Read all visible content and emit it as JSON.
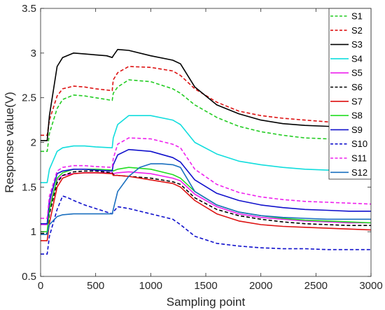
{
  "chart_data": {
    "type": "line",
    "title": "",
    "xlabel": "Sampling point",
    "ylabel": "Response value(V)",
    "xlim": [
      0,
      3000
    ],
    "ylim": [
      0.5,
      3.5
    ],
    "xticks": [
      0,
      500,
      1000,
      1500,
      2000,
      2500,
      3000
    ],
    "xtick_labels": [
      "0",
      "500",
      "1000",
      "1500",
      "2000",
      "2500",
      "3000"
    ],
    "yticks": [
      0.5,
      1,
      1.5,
      2,
      2.5,
      3,
      3.5
    ],
    "ytick_labels": [
      "0.5",
      "1",
      "1.5",
      "2",
      "2.5",
      "3",
      "3.5"
    ],
    "grid": false,
    "legend_position": "top-right",
    "series": [
      {
        "name": "S1",
        "color": "#22cc22",
        "dash": "dashed",
        "x": [
          0,
          60,
          80,
          150,
          200,
          300,
          400,
          500,
          650,
          660,
          700,
          800,
          1000,
          1200,
          1270,
          1400,
          1600,
          1800,
          2000,
          2200,
          2400,
          2600,
          2800,
          3000
        ],
        "y": [
          1.9,
          1.9,
          2.1,
          2.38,
          2.48,
          2.53,
          2.52,
          2.5,
          2.47,
          2.55,
          2.62,
          2.7,
          2.68,
          2.6,
          2.55,
          2.42,
          2.28,
          2.18,
          2.12,
          2.08,
          2.05,
          2.04,
          2.03,
          2.02
        ]
      },
      {
        "name": "S2",
        "color": "#dd1111",
        "dash": "dashed",
        "x": [
          0,
          60,
          80,
          150,
          200,
          300,
          400,
          500,
          650,
          660,
          700,
          800,
          1000,
          1200,
          1270,
          1400,
          1600,
          1800,
          2000,
          2200,
          2400,
          2600,
          2800,
          3000
        ],
        "y": [
          2.08,
          2.08,
          2.25,
          2.52,
          2.6,
          2.63,
          2.62,
          2.6,
          2.58,
          2.7,
          2.78,
          2.85,
          2.84,
          2.8,
          2.75,
          2.6,
          2.45,
          2.35,
          2.3,
          2.27,
          2.25,
          2.23,
          2.22,
          2.21
        ]
      },
      {
        "name": "S3",
        "color": "#000000",
        "dash": "solid",
        "x": [
          0,
          60,
          80,
          150,
          200,
          300,
          400,
          500,
          600,
          650,
          660,
          700,
          800,
          1000,
          1200,
          1270,
          1400,
          1600,
          1800,
          2000,
          2200,
          2400,
          2600,
          2800,
          3000
        ],
        "y": [
          2.02,
          2.02,
          2.3,
          2.85,
          2.95,
          3.0,
          2.99,
          2.98,
          2.97,
          2.95,
          2.97,
          3.04,
          3.03,
          2.97,
          2.92,
          2.88,
          2.62,
          2.42,
          2.32,
          2.25,
          2.21,
          2.19,
          2.18,
          2.17,
          2.17
        ]
      },
      {
        "name": "S4",
        "color": "#11dddd",
        "dash": "solid",
        "x": [
          0,
          60,
          80,
          150,
          200,
          300,
          400,
          500,
          650,
          660,
          700,
          800,
          1000,
          1200,
          1270,
          1400,
          1600,
          1800,
          2000,
          2200,
          2400,
          2600,
          2800,
          3000
        ],
        "y": [
          1.55,
          1.55,
          1.7,
          1.9,
          1.94,
          1.96,
          1.96,
          1.95,
          1.94,
          2.05,
          2.2,
          2.3,
          2.3,
          2.25,
          2.2,
          2.0,
          1.87,
          1.79,
          1.75,
          1.72,
          1.7,
          1.69,
          1.69,
          1.68
        ]
      },
      {
        "name": "S5",
        "color": "#ee22ee",
        "dash": "solid",
        "x": [
          0,
          60,
          80,
          150,
          200,
          300,
          400,
          500,
          650,
          660,
          700,
          800,
          1000,
          1200,
          1270,
          1400,
          1600,
          1800,
          2000,
          2200,
          2400,
          2600,
          2800,
          3000
        ],
        "y": [
          1.08,
          1.08,
          1.3,
          1.58,
          1.63,
          1.65,
          1.66,
          1.66,
          1.66,
          1.65,
          1.66,
          1.67,
          1.65,
          1.6,
          1.57,
          1.42,
          1.28,
          1.2,
          1.16,
          1.14,
          1.12,
          1.11,
          1.1,
          1.1
        ]
      },
      {
        "name": "S6",
        "color": "#000000",
        "dash": "dashed",
        "x": [
          0,
          60,
          80,
          150,
          200,
          300,
          400,
          500,
          650,
          660,
          700,
          800,
          1000,
          1200,
          1270,
          1400,
          1600,
          1800,
          2000,
          2200,
          2400,
          2600,
          2800,
          3000
        ],
        "y": [
          0.98,
          0.98,
          1.2,
          1.55,
          1.63,
          1.67,
          1.68,
          1.68,
          1.66,
          1.64,
          1.63,
          1.62,
          1.6,
          1.56,
          1.53,
          1.38,
          1.25,
          1.18,
          1.14,
          1.11,
          1.09,
          1.08,
          1.07,
          1.07
        ]
      },
      {
        "name": "S7",
        "color": "#dd1111",
        "dash": "solid",
        "x": [
          0,
          60,
          80,
          150,
          200,
          300,
          400,
          500,
          650,
          660,
          700,
          800,
          1000,
          1200,
          1270,
          1400,
          1600,
          1800,
          2000,
          2200,
          2400,
          2600,
          2800,
          3000
        ],
        "y": [
          0.9,
          0.9,
          1.1,
          1.5,
          1.6,
          1.65,
          1.66,
          1.66,
          1.65,
          1.63,
          1.63,
          1.62,
          1.58,
          1.54,
          1.5,
          1.35,
          1.2,
          1.12,
          1.08,
          1.06,
          1.05,
          1.04,
          1.03,
          1.02
        ]
      },
      {
        "name": "S8",
        "color": "#22dd22",
        "dash": "solid",
        "x": [
          0,
          60,
          80,
          150,
          200,
          300,
          400,
          500,
          650,
          660,
          700,
          800,
          1000,
          1200,
          1270,
          1400,
          1600,
          1800,
          2000,
          2200,
          2400,
          2600,
          2800,
          3000
        ],
        "y": [
          1.0,
          1.0,
          1.25,
          1.6,
          1.66,
          1.7,
          1.7,
          1.7,
          1.69,
          1.68,
          1.7,
          1.72,
          1.7,
          1.64,
          1.6,
          1.45,
          1.3,
          1.22,
          1.18,
          1.15,
          1.13,
          1.12,
          1.11,
          1.1
        ]
      },
      {
        "name": "S9",
        "color": "#1111cc",
        "dash": "solid",
        "x": [
          0,
          60,
          80,
          150,
          200,
          300,
          400,
          500,
          650,
          660,
          700,
          800,
          1000,
          1200,
          1270,
          1400,
          1600,
          1800,
          2000,
          2200,
          2400,
          2600,
          2800,
          3000
        ],
        "y": [
          1.09,
          1.09,
          1.35,
          1.65,
          1.68,
          1.7,
          1.7,
          1.69,
          1.68,
          1.75,
          1.86,
          1.92,
          1.9,
          1.83,
          1.78,
          1.58,
          1.43,
          1.35,
          1.3,
          1.27,
          1.25,
          1.24,
          1.23,
          1.23
        ]
      },
      {
        "name": "S10",
        "color": "#1111cc",
        "dash": "dashed",
        "x": [
          0,
          60,
          80,
          150,
          200,
          250,
          300,
          400,
          500,
          650,
          660,
          700,
          800,
          1000,
          1200,
          1270,
          1400,
          1600,
          1800,
          2000,
          2200,
          2400,
          2600,
          2800,
          3000
        ],
        "y": [
          0.75,
          0.75,
          0.95,
          1.25,
          1.4,
          1.38,
          1.35,
          1.3,
          1.26,
          1.2,
          1.22,
          1.28,
          1.26,
          1.2,
          1.14,
          1.08,
          0.95,
          0.87,
          0.84,
          0.82,
          0.81,
          0.81,
          0.8,
          0.8,
          0.8
        ]
      },
      {
        "name": "S11",
        "color": "#ee22ee",
        "dash": "dashed",
        "x": [
          0,
          60,
          80,
          150,
          200,
          300,
          400,
          500,
          650,
          660,
          700,
          800,
          1000,
          1200,
          1270,
          1400,
          1600,
          1800,
          2000,
          2200,
          2400,
          2600,
          2800,
          3000
        ],
        "y": [
          1.15,
          1.15,
          1.4,
          1.68,
          1.72,
          1.74,
          1.74,
          1.73,
          1.72,
          1.82,
          1.98,
          2.05,
          2.04,
          1.98,
          1.94,
          1.7,
          1.53,
          1.44,
          1.39,
          1.36,
          1.34,
          1.33,
          1.32,
          1.31
        ]
      },
      {
        "name": "S12",
        "color": "#1a6fbf",
        "dash": "solid",
        "x": [
          0,
          60,
          80,
          150,
          200,
          300,
          400,
          500,
          600,
          650,
          660,
          700,
          800,
          900,
          1000,
          1100,
          1200,
          1270,
          1400,
          1600,
          1800,
          2000,
          2200,
          2400,
          2600,
          2800,
          3000
        ],
        "y": [
          0.97,
          0.97,
          1.08,
          1.17,
          1.19,
          1.2,
          1.2,
          1.2,
          1.2,
          1.2,
          1.25,
          1.45,
          1.62,
          1.72,
          1.76,
          1.76,
          1.75,
          1.72,
          1.45,
          1.3,
          1.22,
          1.18,
          1.16,
          1.15,
          1.14,
          1.14,
          1.14
        ]
      }
    ]
  }
}
